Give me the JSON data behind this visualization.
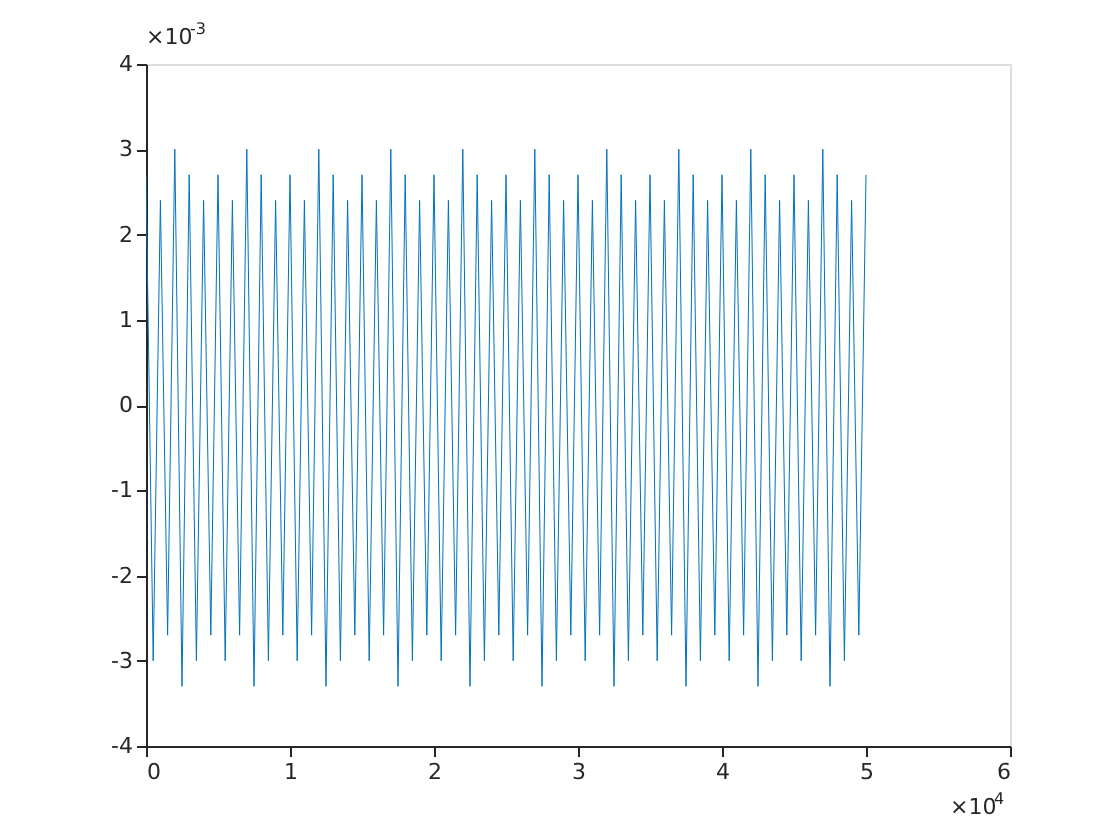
{
  "chart_data": {
    "type": "line",
    "x": [
      0,
      0.05,
      0.1,
      0.15,
      0.2,
      0.25,
      0.3,
      0.35,
      0.4,
      0.45,
      0.5,
      0.55,
      0.6,
      0.65,
      0.7,
      0.75,
      0.8,
      0.85,
      0.9,
      0.95,
      1,
      1.05,
      1.1,
      1.15,
      1.2,
      1.25,
      1.3,
      1.35,
      1.4,
      1.45,
      1.5,
      1.55,
      1.6,
      1.65,
      1.7,
      1.75,
      1.8,
      1.85,
      1.9,
      1.95,
      2,
      2.05,
      2.1,
      2.15,
      2.2,
      2.25,
      2.3,
      2.35,
      2.4,
      2.45,
      2.5,
      2.55,
      2.6,
      2.65,
      2.7,
      2.75,
      2.8,
      2.85,
      2.9,
      2.95,
      3,
      3.05,
      3.1,
      3.15,
      3.2,
      3.25,
      3.3,
      3.35,
      3.4,
      3.45,
      3.5,
      3.55,
      3.6,
      3.65,
      3.7,
      3.75,
      3.8,
      3.85,
      3.9,
      3.95,
      4,
      4.05,
      4.1,
      4.15,
      4.2,
      4.25,
      4.3,
      4.35,
      4.4,
      4.45,
      4.5,
      4.55,
      4.6,
      4.65,
      4.7,
      4.75,
      4.8,
      4.85,
      4.9,
      4.95,
      5
    ],
    "series": [
      {
        "color": "#0072bd",
        "values": [
          2.7,
          -3,
          2.4,
          -2.7,
          3,
          -3.3,
          2.7,
          -3,
          2.4,
          -2.7,
          2.7,
          -3,
          2.4,
          -2.7,
          3,
          -3.3,
          2.7,
          -3,
          2.4,
          -2.7,
          2.7,
          -3,
          2.4,
          -2.7,
          3,
          -3.3,
          2.7,
          -3,
          2.4,
          -2.7,
          2.7,
          -3,
          2.4,
          -2.7,
          3,
          -3.3,
          2.7,
          -3,
          2.4,
          -2.7,
          2.7,
          -3,
          2.4,
          -2.7,
          3,
          -3.3,
          2.7,
          -3,
          2.4,
          -2.7,
          2.7,
          -3,
          2.4,
          -2.7,
          3,
          -3.3,
          2.7,
          -3,
          2.4,
          -2.7,
          2.7,
          -3,
          2.4,
          -2.7,
          3,
          -3.3,
          2.7,
          -3,
          2.4,
          -2.7,
          2.7,
          -3,
          2.4,
          -2.7,
          3,
          -3.3,
          2.7,
          -3,
          2.4,
          -2.7,
          2.7,
          -3,
          2.4,
          -2.7,
          3,
          -3.3,
          2.7,
          -3,
          2.4,
          -2.7,
          2.7,
          -3,
          2.4,
          -2.7,
          3,
          -3.3,
          2.7,
          -3,
          2.4,
          -2.7,
          2.7
        ]
      }
    ],
    "xlim": [
      0,
      6
    ],
    "xticks": [
      0,
      1,
      2,
      3,
      4,
      5,
      6
    ],
    "ylim": [
      -4,
      4
    ],
    "yticks": [
      -4,
      -3,
      -2,
      -1,
      0,
      1,
      2,
      3,
      4
    ],
    "annotations": [
      "×10$^{-3}$",
      "×10$^{4}$"
    ],
    "grid": false,
    "marker": "none",
    "line_style": "solid"
  }
}
